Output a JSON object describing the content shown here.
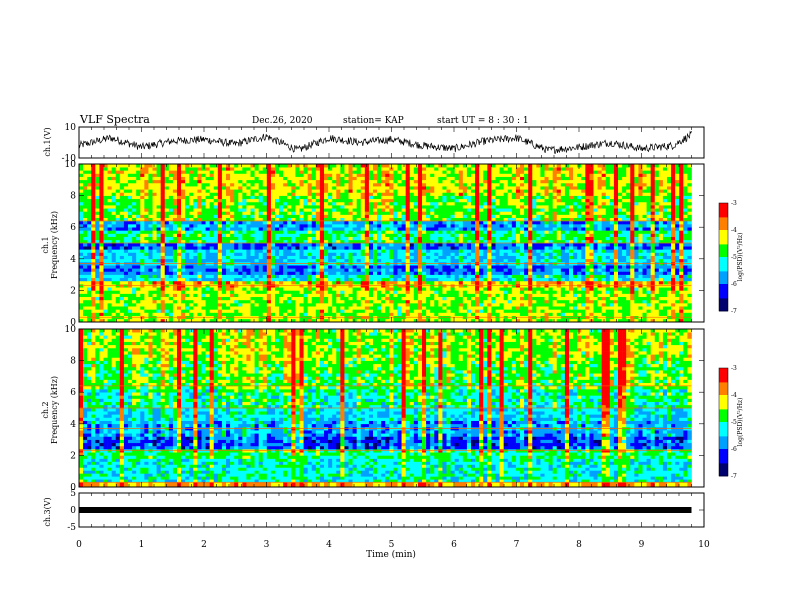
{
  "header": {
    "title": "VLF Spectra",
    "date": "Dec.26, 2020",
    "station": "station= KAP",
    "start": "start  UT =  8 : 30 : 1"
  },
  "colors": {
    "colormap": [
      "#00006e",
      "#0000ff",
      "#00a0ff",
      "#00ffff",
      "#00ff00",
      "#ffff00",
      "#ff8000",
      "#ff0000",
      "#ffffff"
    ],
    "trace": "#000000"
  },
  "chart_data": [
    {
      "type": "line",
      "panel": "ch1-waveform",
      "ylabel": "ch.1(V)",
      "ylim": [
        -10,
        10
      ],
      "yticks": [
        "10",
        "-10"
      ],
      "xlim": [
        0,
        9.8
      ],
      "description_level": "noisy oscillating waveform around 0 V, amplitude roughly ±8 V",
      "x": [
        0,
        0.5,
        1.0,
        1.5,
        2.0,
        2.5,
        3.0,
        3.5,
        4.0,
        4.5,
        5.0,
        5.5,
        6.0,
        6.5,
        7.0,
        7.5,
        8.0,
        8.5,
        9.0,
        9.5,
        9.8
      ],
      "y": [
        -2,
        3,
        -3,
        1,
        2,
        -1,
        4,
        -5,
        3,
        0,
        2,
        -2,
        -4,
        1,
        3,
        -5,
        -3,
        0,
        -4,
        -2,
        5
      ]
    },
    {
      "type": "heatmap",
      "panel": "ch1-spectrogram",
      "ylabel": "ch.1\nFrequency  (kHz)",
      "yticks": [
        "0",
        "2",
        "4",
        "6",
        "8",
        "10"
      ],
      "ylim": [
        0,
        10
      ],
      "xlim": [
        0,
        9.8
      ],
      "colorbar": {
        "label": "log(PSD)(V²/Hz)",
        "ticks": [
          "-3",
          "-4",
          "-5",
          "-6",
          "-7"
        ],
        "range": [
          -7,
          -3
        ]
      },
      "bands_khz": [
        {
          "from": 0,
          "to": 0.4,
          "level": -4.5
        },
        {
          "from": 0.4,
          "to": 2.2,
          "level": -4.6
        },
        {
          "from": 2.2,
          "to": 2.6,
          "level": -4.2
        },
        {
          "from": 2.6,
          "to": 3.0,
          "level": -5.4
        },
        {
          "from": 3.0,
          "to": 3.6,
          "level": -6.0
        },
        {
          "from": 3.6,
          "to": 4.6,
          "level": -5.5
        },
        {
          "from": 4.6,
          "to": 5.0,
          "level": -6.1
        },
        {
          "from": 5.0,
          "to": 5.8,
          "level": -5.0
        },
        {
          "from": 5.8,
          "to": 6.4,
          "level": -5.8
        },
        {
          "from": 6.4,
          "to": 8.0,
          "level": -4.7
        },
        {
          "from": 8.0,
          "to": 10.0,
          "level": -4.4
        }
      ]
    },
    {
      "type": "heatmap",
      "panel": "ch2-spectrogram",
      "ylabel": "ch.2\nFrequency  (kHz)",
      "yticks": [
        "0",
        "2",
        "4",
        "6",
        "8",
        "10"
      ],
      "ylim": [
        0,
        10
      ],
      "xlim": [
        0,
        9.8
      ],
      "colorbar": {
        "label": "log(PSD)(V²/Hz)",
        "ticks": [
          "-3",
          "-4",
          "-5",
          "-6",
          "-7"
        ],
        "range": [
          -7,
          -3
        ]
      },
      "bands_khz": [
        {
          "from": 0,
          "to": 0.3,
          "level": -4.0
        },
        {
          "from": 0.3,
          "to": 1.8,
          "level": -5.3
        },
        {
          "from": 1.8,
          "to": 2.4,
          "level": -5.0
        },
        {
          "from": 2.4,
          "to": 3.2,
          "level": -6.2
        },
        {
          "from": 3.2,
          "to": 4.2,
          "level": -5.8
        },
        {
          "from": 4.2,
          "to": 5.0,
          "level": -5.5
        },
        {
          "from": 5.0,
          "to": 6.2,
          "level": -5.2
        },
        {
          "from": 6.2,
          "to": 8.0,
          "level": -4.8
        },
        {
          "from": 8.0,
          "to": 10.0,
          "level": -4.6
        }
      ]
    },
    {
      "type": "line",
      "panel": "ch3-waveform",
      "ylabel": "ch.3(V)",
      "ylim": [
        -5,
        5
      ],
      "yticks": [
        "5",
        "0",
        "-5"
      ],
      "xlim": [
        0,
        9.8
      ],
      "x": [
        0,
        9.8
      ],
      "y": [
        0,
        0
      ]
    }
  ],
  "xaxis": {
    "label": "Time  (min)",
    "ticks": [
      "0",
      "1",
      "2",
      "3",
      "4",
      "5",
      "6",
      "7",
      "8",
      "9",
      "10"
    ],
    "xlim": [
      0,
      10
    ]
  }
}
